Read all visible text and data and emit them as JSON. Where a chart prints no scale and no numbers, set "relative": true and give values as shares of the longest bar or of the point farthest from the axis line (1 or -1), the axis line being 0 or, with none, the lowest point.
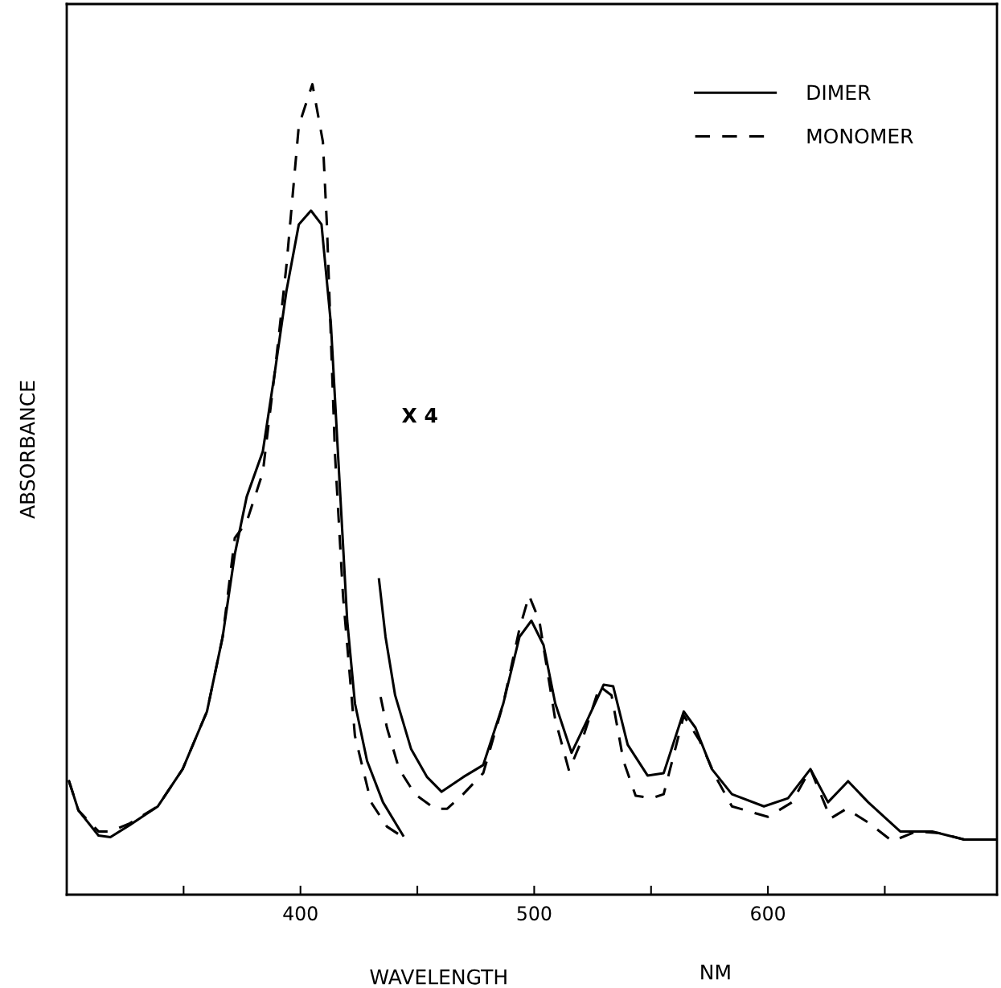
{
  "chart_data": {
    "type": "line",
    "relative": true,
    "xlabel": "WAVELENGTH",
    "ylabel": "ABSORBANCE",
    "annotations": [
      "X 4",
      "NM"
    ],
    "xlim": [
      300,
      698
    ],
    "xticks": [
      {
        "value": 350,
        "label": null
      },
      400,
      {
        "value": 450,
        "label": null
      },
      500,
      {
        "value": 550,
        "label": null
      },
      600,
      {
        "value": 650,
        "label": null
      }
    ],
    "tick_labels": "x",
    "grid": false,
    "legend": "top right",
    "marker": "none",
    "series": [
      {
        "name": "DIMER",
        "color": "#000000",
        "line_style": "solid",
        "x": [
          301,
          305,
          313.6,
          318.7,
          327,
          339,
          349.6,
          360,
          366.7,
          371.9,
          377,
          383.9,
          389,
          394,
          399.3,
          404.5,
          409,
          413,
          416.5,
          420,
          423.3,
          428.5,
          435.3,
          443.9,
          440,
          433.6,
          436.4,
          440.5,
          447.3,
          454.2,
          460.4,
          469.6,
          478.2,
          486.8,
          493.7,
          498.8,
          504,
          509,
          516,
          522.8,
          529.7,
          533.8,
          540,
          548.5,
          555.4,
          564,
          569,
          576,
          584.6,
          598.3,
          608.6,
          618.2,
          625.7,
          634.3,
          642.9,
          656.6,
          670.3,
          684,
          697.8
        ],
        "values": [
          0.14,
          0.104,
          0.073,
          0.071,
          0.086,
          0.109,
          0.155,
          0.226,
          0.318,
          0.42,
          0.491,
          0.547,
          0.644,
          0.745,
          0.827,
          0.844,
          0.827,
          0.705,
          0.521,
          0.338,
          0.236,
          0.165,
          0.114,
          0.073,
          null,
          0.389,
          0.318,
          0.246,
          0.18,
          0.145,
          0.127,
          0.145,
          0.16,
          0.236,
          0.318,
          0.338,
          0.308,
          0.236,
          0.175,
          0.216,
          0.259,
          0.257,
          0.185,
          0.147,
          0.15,
          0.226,
          0.206,
          0.155,
          0.124,
          0.109,
          0.119,
          0.155,
          0.114,
          0.14,
          0.114,
          0.078,
          0.078,
          0.068,
          0.068
        ]
      },
      {
        "name": "MONOMER",
        "color": "#000000",
        "line_style": "dashed",
        "x": [
          301,
          305,
          313.6,
          318.7,
          327,
          339,
          349.6,
          360,
          366.7,
          371.9,
          377,
          383.9,
          389,
          394,
          399.3,
          405.1,
          409.6,
          411.3,
          414.8,
          418.2,
          423.3,
          430.2,
          437,
          443.9,
          440,
          434.3,
          437,
          442.2,
          449,
          457.6,
          462.8,
          469.6,
          478.2,
          486.8,
          493.7,
          497.8,
          502.2,
          509,
          514.9,
          521.1,
          528,
          533.1,
          538.2,
          543.4,
          550.3,
          555.4,
          564,
          570.8,
          577.7,
          584.6,
          600,
          610.3,
          618.2,
          626.8,
          633.6,
          642.9,
          653.2,
          663.5,
          673.5,
          684,
          697.8
        ],
        "values": [
          0.14,
          0.104,
          0.078,
          0.078,
          0.088,
          0.109,
          0.155,
          0.226,
          0.318,
          0.44,
          0.46,
          0.521,
          0.644,
          0.776,
          0.949,
          1.0,
          0.929,
          0.827,
          0.542,
          0.369,
          0.196,
          0.114,
          0.084,
          0.071,
          null,
          0.244,
          0.206,
          0.155,
          0.124,
          0.106,
          0.106,
          0.124,
          0.15,
          0.236,
          0.328,
          0.369,
          0.338,
          0.216,
          0.153,
          0.196,
          0.257,
          0.246,
          0.165,
          0.122,
          0.119,
          0.124,
          0.221,
          0.19,
          0.145,
          0.109,
          0.096,
          0.114,
          0.155,
          0.094,
          0.106,
          0.089,
          0.066,
          0.078,
          0.076,
          0.068,
          0.068
        ]
      }
    ]
  }
}
